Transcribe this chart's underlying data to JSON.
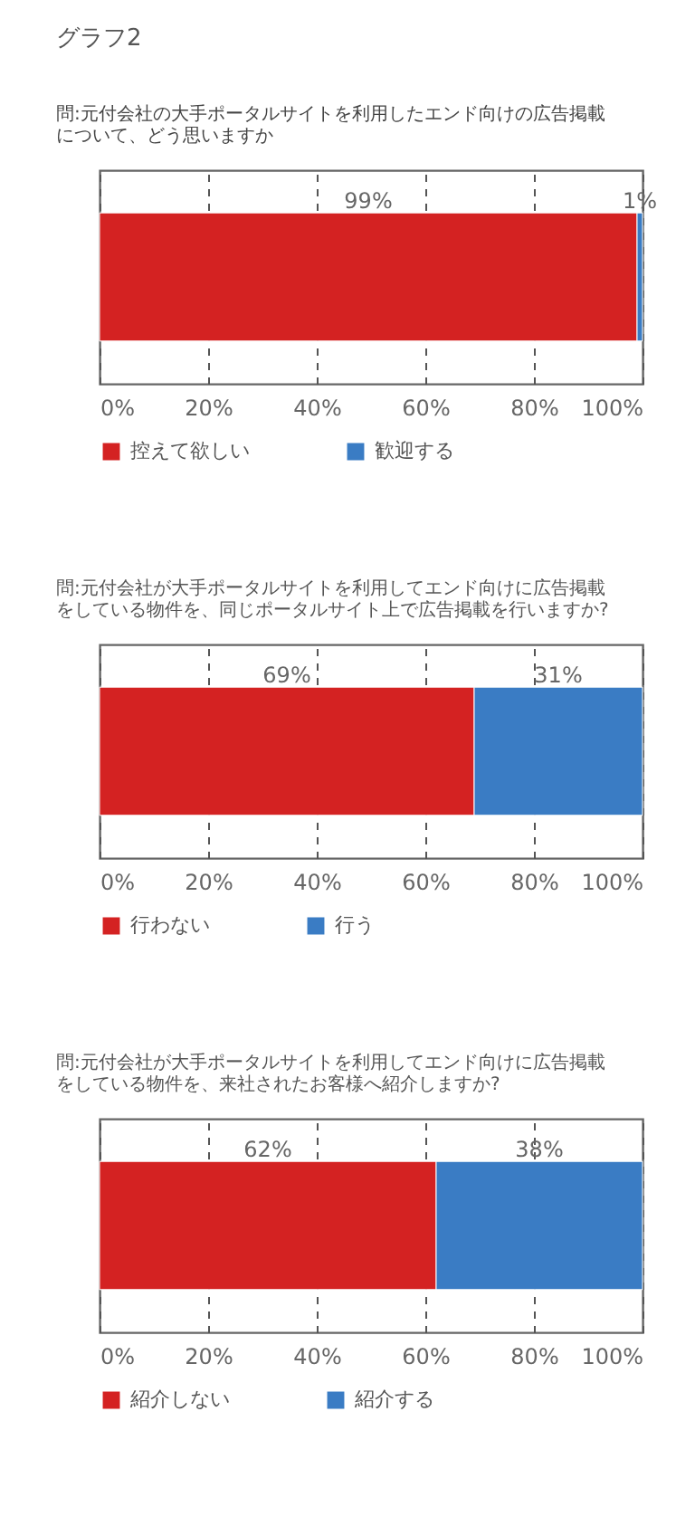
{
  "chart_data": [
    {
      "type": "bar",
      "orientation": "horizontal",
      "stacked": true,
      "title": "グラフ2",
      "subtitle": "問:元付会社の大手ポータルサイトを利用したエンド向けの広告掲載について、どう思いますか",
      "categories": [
        null
      ],
      "series": [
        {
          "name": "控えて欲しい",
          "color": "#d42222",
          "values": [
            99
          ],
          "value_labels": [
            "99%"
          ]
        },
        {
          "name": "歓迎する",
          "color": "#3a7cc4",
          "values": [
            1
          ],
          "value_labels": [
            "1%"
          ]
        }
      ],
      "xlim": [
        0,
        100
      ],
      "xticks": [
        {
          "value": 0,
          "label": "0%"
        },
        {
          "value": 20,
          "label": "20%"
        },
        {
          "value": 40,
          "label": "40%"
        },
        {
          "value": 60,
          "label": "60%"
        },
        {
          "value": 80,
          "label": "80%"
        },
        {
          "value": 100,
          "label": "100%"
        }
      ],
      "grid": "x",
      "legend": "bottom"
    },
    {
      "type": "bar",
      "orientation": "horizontal",
      "stacked": true,
      "title": "問:元付会社が大手ポータルサイトを利用してエンド向けに広告掲載をしている物件を、同じポータルサイト上で広告掲載を行いますか?",
      "categories": [
        null
      ],
      "series": [
        {
          "name": "行わない",
          "color": "#d42222",
          "values": [
            69
          ],
          "value_labels": [
            "69%"
          ]
        },
        {
          "name": "行う",
          "color": "#3a7cc4",
          "values": [
            31
          ],
          "value_labels": [
            "31%"
          ]
        }
      ],
      "xlim": [
        0,
        100
      ],
      "xticks": [
        {
          "value": 0,
          "label": "0%"
        },
        {
          "value": 20,
          "label": "20%"
        },
        {
          "value": 40,
          "label": "40%"
        },
        {
          "value": 60,
          "label": "60%"
        },
        {
          "value": 80,
          "label": "80%"
        },
        {
          "value": 100,
          "label": "100%"
        }
      ],
      "grid": "x",
      "legend": "bottom"
    },
    {
      "type": "bar",
      "orientation": "horizontal",
      "stacked": true,
      "title": "問:元付会社が大手ポータルサイトを利用してエンド向けに広告掲載をしている物件を、来社されたお客様へ紹介しますか?",
      "categories": [
        null
      ],
      "series": [
        {
          "name": "紹介しない",
          "color": "#d42222",
          "values": [
            62
          ],
          "value_labels": [
            "62%"
          ]
        },
        {
          "name": "紹介する",
          "color": "#3a7cc4",
          "values": [
            38
          ],
          "value_labels": [
            "38%"
          ]
        }
      ],
      "xlim": [
        0,
        100
      ],
      "xticks": [
        {
          "value": 0,
          "label": "0%"
        },
        {
          "value": 20,
          "label": "20%"
        },
        {
          "value": 40,
          "label": "40%"
        },
        {
          "value": 60,
          "label": "60%"
        },
        {
          "value": 80,
          "label": "80%"
        },
        {
          "value": 100,
          "label": "100%"
        }
      ],
      "grid": "x",
      "legend": "bottom"
    }
  ]
}
